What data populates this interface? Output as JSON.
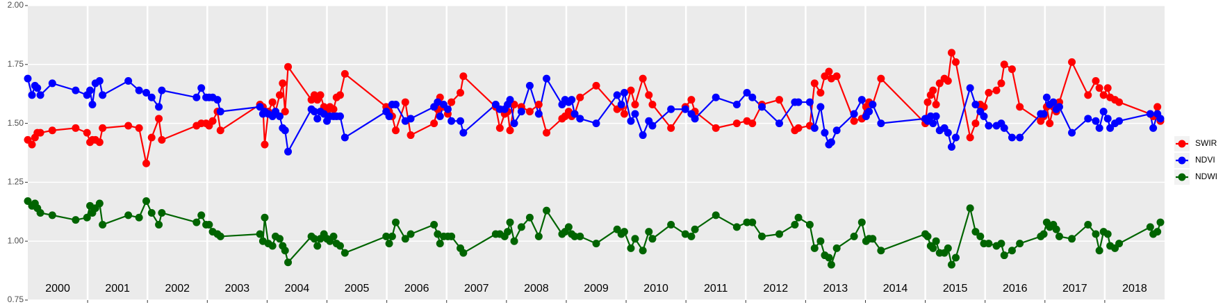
{
  "chart_data": {
    "type": "line",
    "x": [
      2000,
      2000.07,
      2000.12,
      2000.16,
      2000.21,
      2000.41,
      2000.8,
      2000.99,
      2001.04,
      2001.08,
      2001.13,
      2001.2,
      2001.25,
      2001.68,
      2001.86,
      2001.98,
      2002.07,
      2002.19,
      2002.24,
      2002.82,
      2002.9,
      2002.98,
      2003.03,
      2003.09,
      2003.17,
      2003.22,
      2003.88,
      2003.93,
      2003.96,
      2004.02,
      2004.09,
      2004.14,
      2004.21,
      2004.26,
      2004.3,
      2004.35,
      2004.74,
      2004.79,
      2004.84,
      2004.89,
      2004.95,
      2005,
      2005.05,
      2005.11,
      2005.16,
      2005.22,
      2005.3,
      2005.99,
      2006.04,
      2006.09,
      2006.15,
      2006.31,
      2006.4,
      2006.79,
      2006.85,
      2006.89,
      2006.95,
      2007.02,
      2007.08,
      2007.23,
      2007.28,
      2007.82,
      2007.89,
      2007.97,
      2008.02,
      2008.06,
      2008.13,
      2008.25,
      2008.39,
      2008.54,
      2008.67,
      2008.93,
      2008.98,
      2009.04,
      2009.09,
      2009.14,
      2009.23,
      2009.5,
      2009.85,
      2009.92,
      2009.97,
      2010.08,
      2010.15,
      2010.28,
      2010.38,
      2010.44,
      2010.75,
      2010.99,
      2011.09,
      2011.15,
      2011.5,
      2011.85,
      2012.02,
      2012.11,
      2012.27,
      2012.56,
      2012.82,
      2012.88,
      2013.07,
      2013.15,
      2013.25,
      2013.32,
      2013.39,
      2013.43,
      2013.52,
      2013.81,
      2013.94,
      2014.01,
      2014.06,
      2014.12,
      2014.26,
      2015,
      2015.04,
      2015.09,
      2015.13,
      2015.18,
      2015.24,
      2015.32,
      2015.38,
      2015.44,
      2015.51,
      2015.75,
      2015.84,
      2015.92,
      2015.98,
      2016.06,
      2016.19,
      2016.27,
      2016.32,
      2016.45,
      2016.58,
      2016.93,
      2016.98,
      2017.03,
      2017.08,
      2017.14,
      2017.19,
      2017.24,
      2017.45,
      2017.72,
      2017.85,
      2017.91,
      2017.98,
      2018.05,
      2018.09,
      2018.17,
      2018.24,
      2018.76,
      2018.81,
      2018.88,
      2018.93
    ],
    "series": [
      {
        "name": "SWIR",
        "color": "#ff0000",
        "values": [
          1.43,
          1.41,
          1.44,
          1.46,
          1.46,
          1.47,
          1.48,
          1.46,
          1.42,
          1.43,
          1.43,
          1.42,
          1.48,
          1.49,
          1.48,
          1.33,
          1.44,
          1.52,
          1.43,
          1.49,
          1.5,
          1.5,
          1.49,
          1.51,
          1.55,
          1.47,
          1.58,
          1.57,
          1.41,
          1.55,
          1.59,
          1.55,
          1.62,
          1.67,
          1.55,
          1.74,
          1.6,
          1.62,
          1.6,
          1.62,
          1.57,
          1.55,
          1.57,
          1.56,
          1.61,
          1.62,
          1.71,
          1.57,
          1.55,
          1.53,
          1.47,
          1.59,
          1.45,
          1.5,
          1.56,
          1.61,
          1.57,
          1.54,
          1.59,
          1.63,
          1.7,
          1.57,
          1.48,
          1.54,
          1.55,
          1.47,
          1.58,
          1.57,
          1.55,
          1.58,
          1.46,
          1.52,
          1.53,
          1.55,
          1.53,
          1.54,
          1.61,
          1.66,
          1.56,
          1.57,
          1.54,
          1.64,
          1.58,
          1.69,
          1.62,
          1.58,
          1.48,
          1.57,
          1.6,
          1.55,
          1.48,
          1.5,
          1.51,
          1.5,
          1.58,
          1.6,
          1.47,
          1.48,
          1.49,
          1.67,
          1.63,
          1.7,
          1.72,
          1.69,
          1.7,
          1.51,
          1.52,
          1.57,
          1.59,
          1.58,
          1.69,
          1.5,
          1.59,
          1.62,
          1.64,
          1.58,
          1.67,
          1.69,
          1.68,
          1.8,
          1.76,
          1.44,
          1.5,
          1.58,
          1.57,
          1.63,
          1.64,
          1.67,
          1.75,
          1.73,
          1.57,
          1.51,
          1.53,
          1.57,
          1.5,
          1.57,
          1.55,
          1.59,
          1.76,
          1.62,
          1.68,
          1.65,
          1.62,
          1.65,
          1.61,
          1.6,
          1.59,
          1.54,
          1.53,
          1.57,
          1.51
        ]
      },
      {
        "name": "NDVI",
        "color": "#0000ff",
        "values": [
          1.69,
          1.62,
          1.66,
          1.65,
          1.62,
          1.67,
          1.64,
          1.62,
          1.64,
          1.58,
          1.67,
          1.68,
          1.62,
          1.68,
          1.64,
          1.63,
          1.61,
          1.57,
          1.64,
          1.61,
          1.65,
          1.61,
          1.61,
          1.61,
          1.6,
          1.55,
          1.57,
          1.54,
          1.55,
          1.54,
          1.53,
          1.55,
          1.53,
          1.48,
          1.47,
          1.38,
          1.56,
          1.55,
          1.52,
          1.55,
          1.54,
          1.51,
          1.53,
          1.53,
          1.53,
          1.53,
          1.44,
          1.55,
          1.53,
          1.58,
          1.58,
          1.51,
          1.52,
          1.57,
          1.59,
          1.53,
          1.58,
          1.56,
          1.51,
          1.51,
          1.46,
          1.58,
          1.56,
          1.56,
          1.58,
          1.6,
          1.5,
          1.55,
          1.66,
          1.54,
          1.69,
          1.58,
          1.6,
          1.59,
          1.6,
          1.54,
          1.52,
          1.5,
          1.62,
          1.58,
          1.63,
          1.51,
          1.54,
          1.45,
          1.51,
          1.49,
          1.56,
          1.56,
          1.54,
          1.52,
          1.61,
          1.58,
          1.63,
          1.61,
          1.57,
          1.5,
          1.59,
          1.59,
          1.59,
          1.48,
          1.57,
          1.46,
          1.41,
          1.42,
          1.47,
          1.54,
          1.6,
          1.53,
          1.55,
          1.58,
          1.5,
          1.52,
          1.51,
          1.53,
          1.5,
          1.53,
          1.47,
          1.48,
          1.46,
          1.4,
          1.44,
          1.65,
          1.58,
          1.55,
          1.53,
          1.49,
          1.49,
          1.5,
          1.48,
          1.44,
          1.44,
          1.54,
          1.54,
          1.61,
          1.58,
          1.59,
          1.56,
          1.57,
          1.46,
          1.52,
          1.51,
          1.48,
          1.55,
          1.52,
          1.48,
          1.5,
          1.51,
          1.54,
          1.48,
          1.54,
          1.52
        ]
      },
      {
        "name": "NDWI",
        "color": "#006400",
        "values": [
          1.17,
          1.15,
          1.16,
          1.14,
          1.12,
          1.11,
          1.09,
          1.1,
          1.15,
          1.12,
          1.14,
          1.16,
          1.07,
          1.11,
          1.1,
          1.17,
          1.12,
          1.07,
          1.12,
          1.08,
          1.11,
          1.07,
          1.07,
          1.04,
          1.03,
          1.02,
          1.03,
          1.0,
          1.1,
          0.99,
          0.98,
          1.02,
          1.01,
          0.98,
          0.96,
          0.91,
          1.02,
          1.01,
          0.98,
          1.01,
          1.03,
          1.01,
          1.0,
          1.02,
          0.99,
          0.98,
          0.95,
          1.02,
          0.99,
          1.02,
          1.08,
          1.01,
          1.03,
          1.07,
          1.03,
          0.99,
          1.02,
          1.02,
          1.02,
          0.97,
          0.95,
          1.03,
          1.03,
          1.02,
          1.04,
          1.08,
          1.0,
          1.06,
          1.1,
          1.02,
          1.13,
          1.03,
          1.04,
          1.06,
          1.03,
          1.02,
          1.02,
          0.99,
          1.05,
          1.03,
          1.04,
          0.97,
          1.01,
          0.96,
          1.04,
          1.01,
          1.07,
          1.03,
          1.02,
          1.05,
          1.11,
          1.06,
          1.08,
          1.08,
          1.02,
          1.03,
          1.07,
          1.1,
          1.07,
          0.97,
          1.0,
          0.94,
          0.93,
          0.9,
          0.97,
          1.02,
          1.08,
          1.0,
          1.01,
          1.01,
          0.96,
          1.03,
          1.02,
          0.98,
          0.97,
          1.0,
          0.95,
          0.95,
          0.97,
          0.9,
          0.93,
          1.14,
          1.04,
          1.02,
          0.99,
          0.99,
          0.98,
          0.99,
          0.94,
          0.96,
          0.99,
          1.02,
          1.03,
          1.08,
          1.06,
          1.07,
          1.05,
          1.02,
          1.01,
          1.07,
          1.03,
          0.96,
          1.04,
          1.03,
          0.98,
          0.97,
          0.99,
          1.06,
          1.03,
          1.04,
          1.08
        ]
      }
    ],
    "xlim": [
      2000,
      2019
    ],
    "xticks": [
      2001,
      2002,
      2003,
      2004,
      2005,
      2006,
      2007,
      2008,
      2009,
      2010,
      2011,
      2012,
      2013,
      2014,
      2015,
      2016,
      2017,
      2018
    ],
    "year_labels": [
      {
        "value": 2000.5,
        "label": "2000"
      },
      {
        "value": 2001.5,
        "label": "2001"
      },
      {
        "value": 2002.5,
        "label": "2002"
      },
      {
        "value": 2003.5,
        "label": "2003"
      },
      {
        "value": 2004.5,
        "label": "2004"
      },
      {
        "value": 2005.5,
        "label": "2005"
      },
      {
        "value": 2006.5,
        "label": "2006"
      },
      {
        "value": 2007.5,
        "label": "2007"
      },
      {
        "value": 2008.5,
        "label": "2008"
      },
      {
        "value": 2009.5,
        "label": "2009"
      },
      {
        "value": 2010.5,
        "label": "2010"
      },
      {
        "value": 2011.5,
        "label": "2011"
      },
      {
        "value": 2012.5,
        "label": "2012"
      },
      {
        "value": 2013.5,
        "label": "2013"
      },
      {
        "value": 2014.5,
        "label": "2014"
      },
      {
        "value": 2015.5,
        "label": "2015"
      },
      {
        "value": 2016.5,
        "label": "2016"
      },
      {
        "value": 2017.5,
        "label": "2017"
      },
      {
        "value": 2018.5,
        "label": "2018"
      }
    ],
    "ylim": [
      0.75,
      2
    ],
    "yticks": [
      {
        "value": 0.75,
        "label": "0.75"
      },
      {
        "value": 1,
        "label": "1.00"
      },
      {
        "value": 1.25,
        "label": "1.25"
      },
      {
        "value": 1.5,
        "label": "1.50"
      },
      {
        "value": 1.75,
        "label": "1.75"
      },
      {
        "value": 2,
        "label": "2.00"
      }
    ],
    "grid": true,
    "legend": "right"
  }
}
